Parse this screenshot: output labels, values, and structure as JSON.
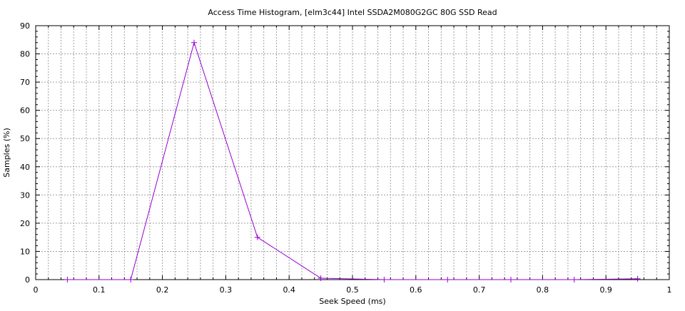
{
  "chart_data": {
    "type": "line",
    "title": "Access Time Histogram, [elm3c44] Intel SSDA2M080G2GC 80G SSD Read",
    "xlabel": "Seek Speed (ms)",
    "ylabel": "Samples (%)",
    "xlim": [
      0,
      1
    ],
    "ylim": [
      0,
      90
    ],
    "x_ticks": [
      "0",
      "0.1",
      "0.2",
      "0.3",
      "0.4",
      "0.5",
      "0.6",
      "0.7",
      "0.8",
      "0.9",
      "1"
    ],
    "y_ticks": [
      "0",
      "10",
      "20",
      "30",
      "40",
      "50",
      "60",
      "70",
      "80",
      "90"
    ],
    "grid": true,
    "series": [
      {
        "color": "#9400d3",
        "marker": "plus",
        "x": [
          0.05,
          0.15,
          0.25,
          0.35,
          0.45,
          0.55,
          0.65,
          0.75,
          0.85,
          0.95
        ],
        "y": [
          0,
          0,
          84,
          15,
          0.5,
          0,
          0,
          0,
          0,
          0.3
        ]
      }
    ]
  }
}
